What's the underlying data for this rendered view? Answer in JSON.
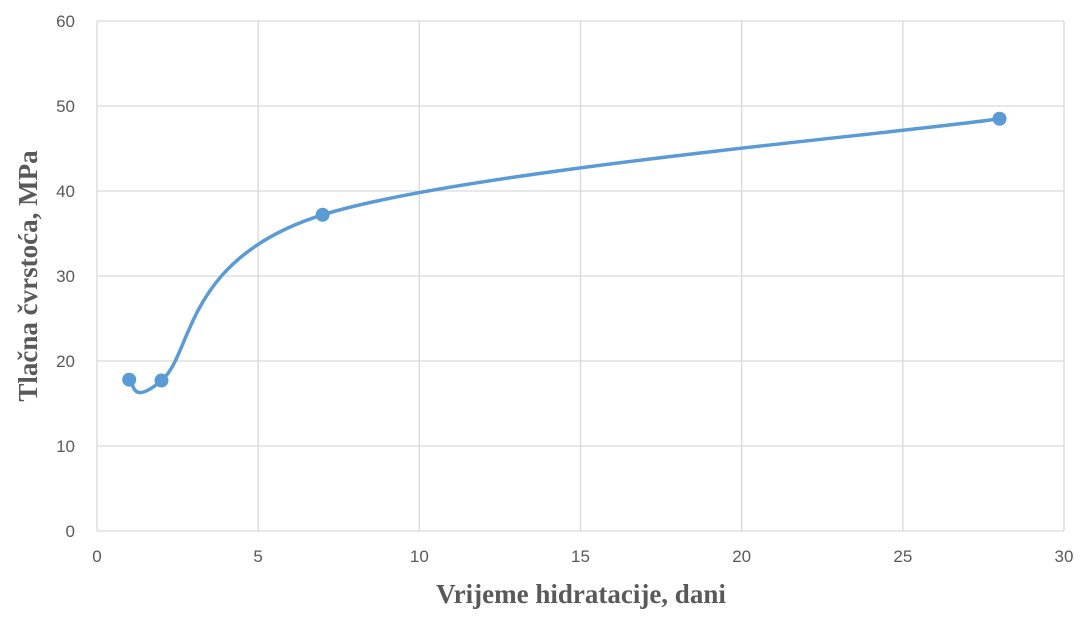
{
  "chart_data": {
    "type": "scatter",
    "title": "",
    "xlabel": "Vrijeme hidratacije, dani",
    "ylabel": "Tlačna čvrstoća, MPa",
    "xlim": [
      0,
      30
    ],
    "ylim": [
      0,
      60
    ],
    "x_ticks": [
      0,
      5,
      10,
      15,
      20,
      25,
      30
    ],
    "y_ticks": [
      0,
      10,
      20,
      30,
      40,
      50,
      60
    ],
    "grid": true,
    "legend": "none",
    "smooth_line": true,
    "series": [
      {
        "x": [
          1,
          2,
          7,
          28
        ],
        "y": [
          17.8,
          17.7,
          37.2,
          48.5
        ],
        "color": "#5B9BD5"
      }
    ],
    "colors": {
      "grid": "#D9D9D9",
      "text": "#595959",
      "series": "#5B9BD5"
    }
  }
}
